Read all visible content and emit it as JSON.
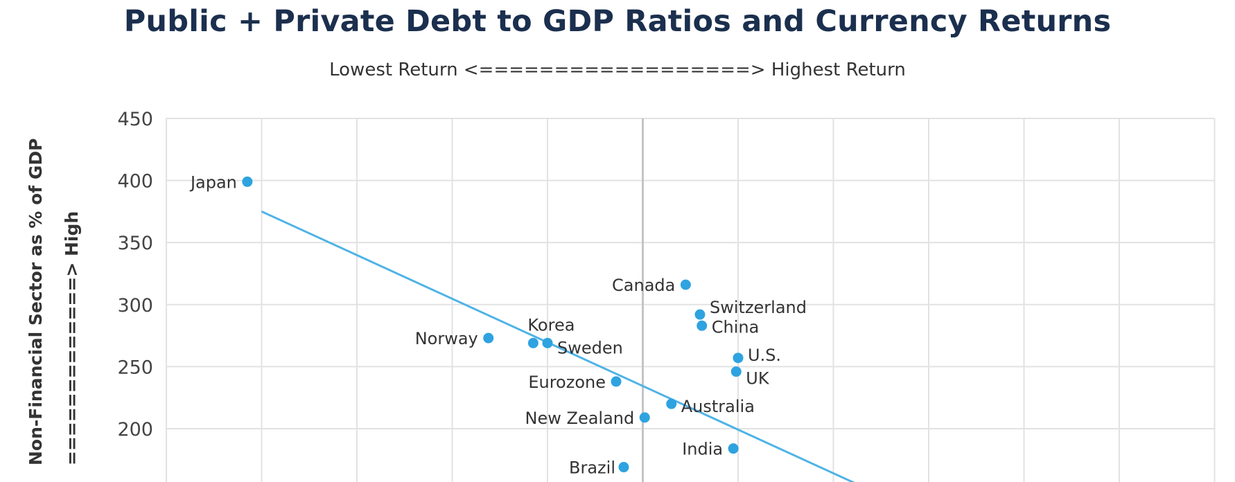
{
  "chart_data": {
    "type": "scatter",
    "title": "Public + Private Debt to GDP Ratios and Currency Returns",
    "subtitle": "Lowest Return <==================> Highest Return",
    "xlabel": "",
    "ylabel": "Non-Financial Sector as % of GDP",
    "ylabel_extra": "=============> High",
    "ylim": [
      150,
      450
    ],
    "yticks": [
      200,
      250,
      300,
      350,
      400,
      450
    ],
    "xlim": [
      0,
      11
    ],
    "grid": true,
    "points": [
      {
        "label": "Japan",
        "x": 0.85,
        "y": 399
      },
      {
        "label": "Canada",
        "x": 5.45,
        "y": 316
      },
      {
        "label": "Switzerland",
        "x": 5.6,
        "y": 292
      },
      {
        "label": "China",
        "x": 5.62,
        "y": 283
      },
      {
        "label": "Norway",
        "x": 3.38,
        "y": 273
      },
      {
        "label": "Korea",
        "x": 3.85,
        "y": 269
      },
      {
        "label": "Sweden",
        "x": 4.0,
        "y": 269
      },
      {
        "label": "U.S.",
        "x": 6.0,
        "y": 257
      },
      {
        "label": "UK",
        "x": 5.98,
        "y": 246
      },
      {
        "label": "Eurozone",
        "x": 4.72,
        "y": 238
      },
      {
        "label": "Australia",
        "x": 5.3,
        "y": 220
      },
      {
        "label": "New Zealand",
        "x": 5.02,
        "y": 209
      },
      {
        "label": "India",
        "x": 5.95,
        "y": 184
      },
      {
        "label": "Brazil",
        "x": 4.8,
        "y": 169
      }
    ],
    "trendline": {
      "x": [
        1.0,
        7.4
      ],
      "y": [
        375,
        150
      ]
    },
    "colors": {
      "points": "#2ea3e0",
      "trendline": "#4fb3e6",
      "grid": "#e2e2e2",
      "center_line": "#c4c4c4",
      "title": "#1b2f4e"
    }
  }
}
